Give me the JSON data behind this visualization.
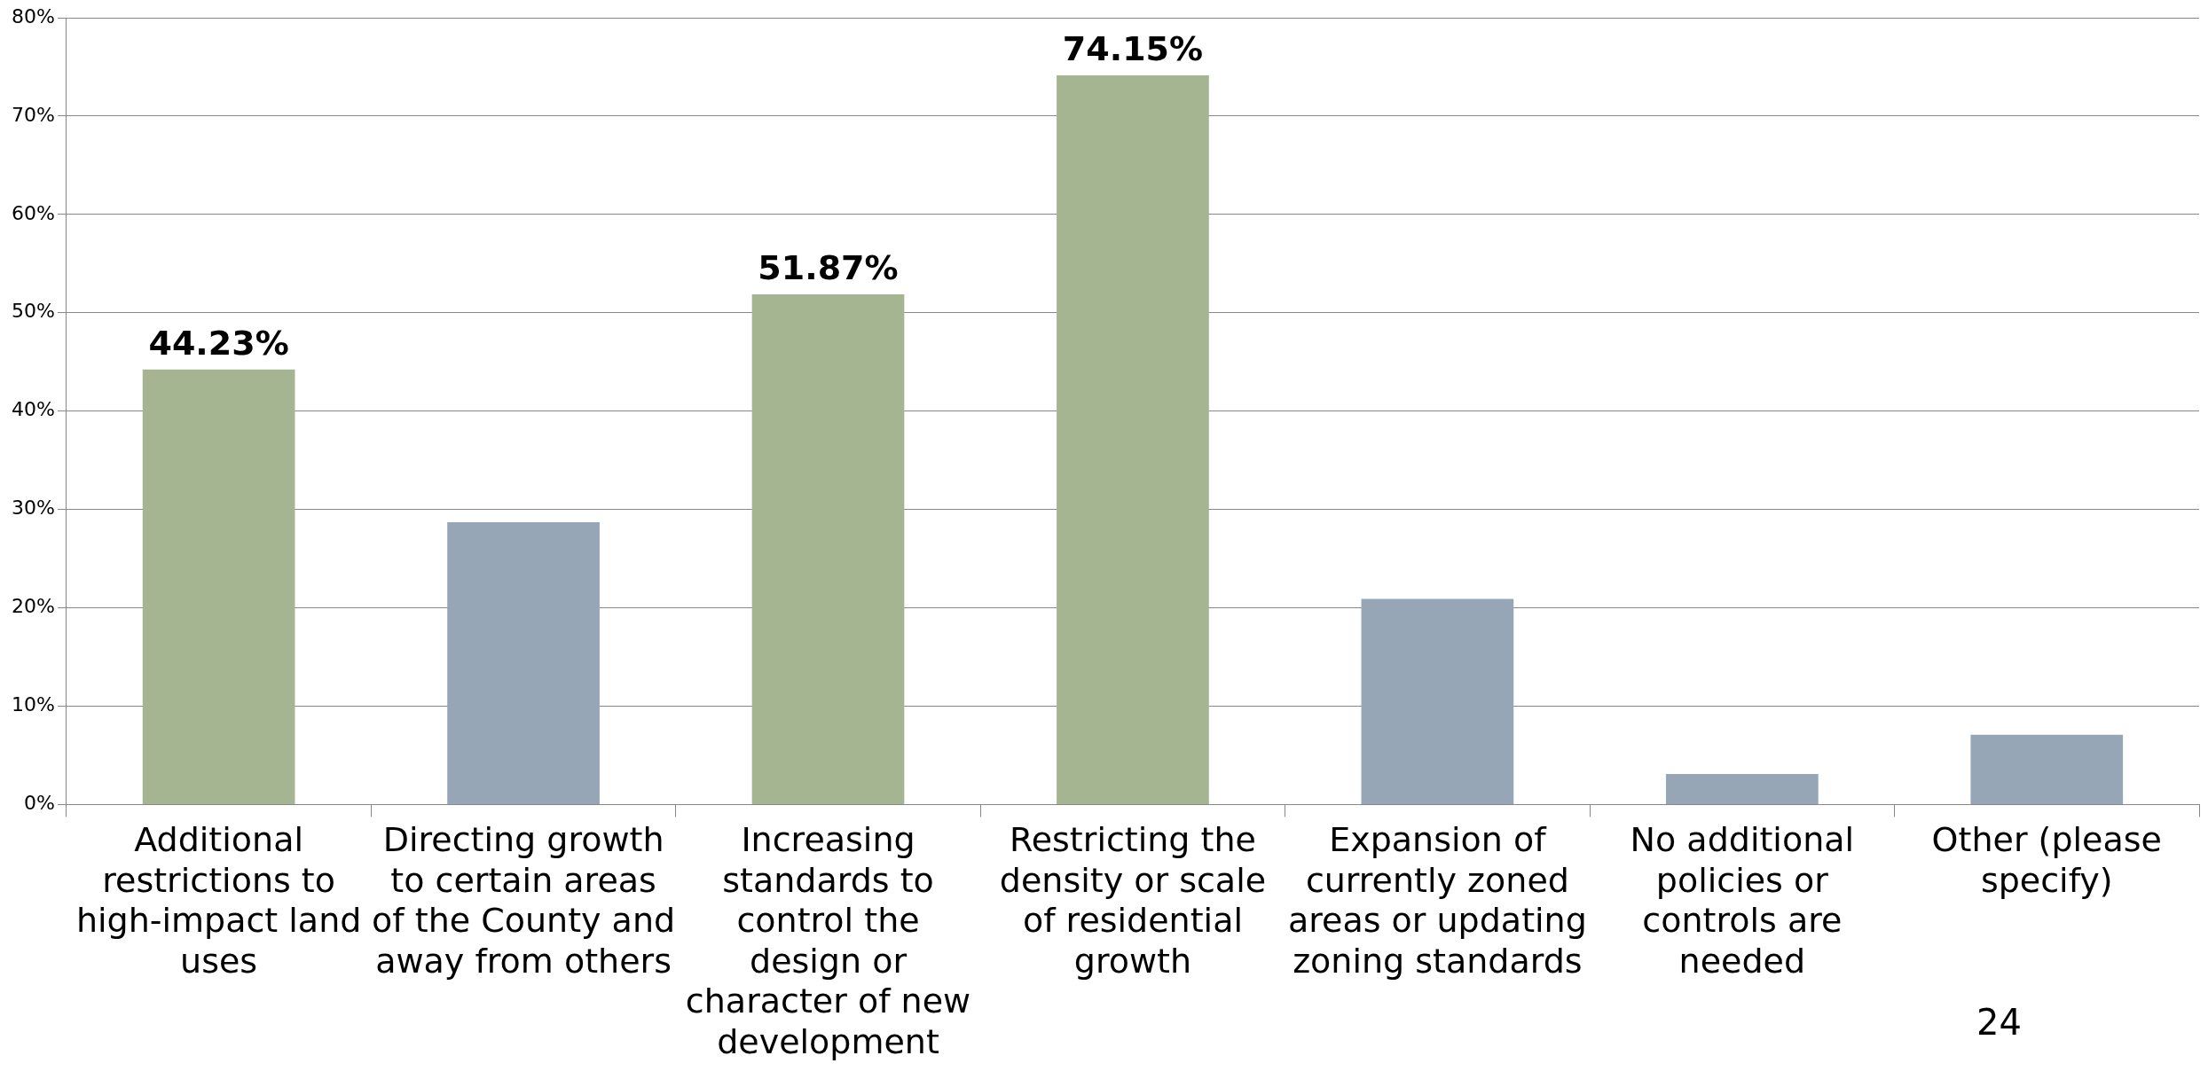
{
  "chart_data": {
    "type": "bar",
    "categories": [
      "Additional restrictions to high-impact land uses",
      "Directing growth to certain areas of the County and away from others",
      "Increasing standards to control the design or character of new development",
      "Restricting the density or scale of residential growth",
      "Expansion of currently zoned areas or updating zoning standards",
      "No additional policies or controls are needed",
      "Other (please specify)"
    ],
    "values": [
      44.23,
      28.7,
      51.87,
      74.15,
      20.9,
      3.1,
      7.1
    ],
    "colors": [
      "#a5b592",
      "#97a6b6",
      "#a5b592",
      "#a5b592",
      "#97a6b6",
      "#97a6b6",
      "#97a6b6"
    ],
    "value_labels": [
      "44.23%",
      null,
      "51.87%",
      "74.15%",
      null,
      null,
      null
    ],
    "ylim": [
      0,
      80
    ],
    "yticks": [
      {
        "value": 0,
        "label": "0%"
      },
      {
        "value": 10,
        "label": "10%"
      },
      {
        "value": 20,
        "label": "20%"
      },
      {
        "value": 30,
        "label": "30%"
      },
      {
        "value": 40,
        "label": "40%"
      },
      {
        "value": 50,
        "label": "50%"
      },
      {
        "value": 60,
        "label": "60%"
      },
      {
        "value": 70,
        "label": "70%"
      },
      {
        "value": 80,
        "label": "80%"
      }
    ],
    "grid": "y",
    "legend": false,
    "annotations": [
      "24"
    ]
  }
}
